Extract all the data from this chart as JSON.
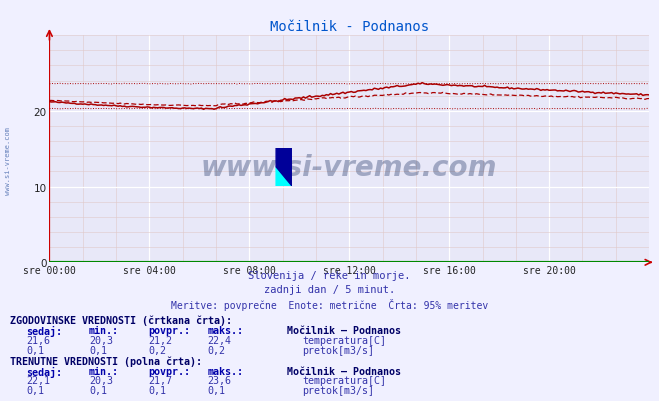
{
  "title": "Močilnik - Podnanos",
  "title_color": "#0055cc",
  "bg_color": "#f0f0ff",
  "plot_bg_color": "#e8e8f8",
  "grid_major_color": "#ffffff",
  "grid_minor_color": "#e0c8c8",
  "xlabel_text1": "Slovenija / reke in morje.",
  "xlabel_text2": "zadnji dan / 5 minut.",
  "xlabel_text3": "Meritve: povprečne  Enote: metrične  Črta: 95% meritev",
  "x_labels": [
    "sre 00:00",
    "sre 04:00",
    "sre 08:00",
    "sre 12:00",
    "sre 16:00",
    "sre 20:00"
  ],
  "x_ticks": [
    0,
    48,
    96,
    144,
    192,
    240
  ],
  "x_max": 288,
  "y_min": 0,
  "y_max": 30,
  "y_ticks": [
    0,
    10,
    20
  ],
  "temp_color": "#aa0000",
  "flow_color": "#008800",
  "axis_color": "#cc0000",
  "watermark_text": "www.si-vreme.com",
  "watermark_color": "#1a3060",
  "watermark_alpha": 0.35,
  "sidevreme_color": "#4466aa",
  "footnote_color": "#3333aa",
  "table_header_color": "#000066",
  "table_bold_color": "#0000aa",
  "table_data_color": "#3333aa",
  "hist_label": "ZGODOVINSKE VREDNOSTI (črtkana črta):",
  "curr_label": "TRENUTNE VREDNOSTI (polna črta):",
  "station_label": "Močilnik – Podnanos",
  "col_headers": [
    "sedaj:",
    "min.:",
    "povpr.:",
    "maks.:"
  ],
  "hist_temp": [
    21.6,
    20.3,
    21.2,
    22.4
  ],
  "hist_flow": [
    0.1,
    0.1,
    0.2,
    0.2
  ],
  "curr_temp": [
    22.1,
    20.3,
    21.7,
    23.6
  ],
  "curr_flow": [
    0.1,
    0.1,
    0.1,
    0.1
  ],
  "temp_label": "temperatura[C]",
  "flow_label": "pretok[m3/s]",
  "temp_sq_color": "#cc0000",
  "flow_sq_color": "#008800"
}
